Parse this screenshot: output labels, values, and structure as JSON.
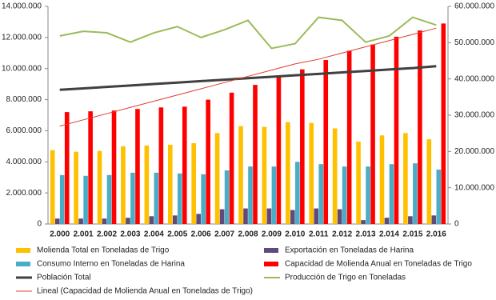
{
  "chart_data": {
    "type": "bar",
    "categories": [
      "2.000",
      "2.001",
      "2.002",
      "2.003",
      "2.004",
      "2.005",
      "2.006",
      "2.007",
      "2.008",
      "2.009",
      "2.010",
      "2.011",
      "2.012",
      "2.013",
      "2.014",
      "2.015",
      "2.016"
    ],
    "ylim": [
      0,
      14000000
    ],
    "yticks": [
      0,
      {
        "value": 2000000,
        "label": "2.000.000"
      },
      {
        "value": 4000000,
        "label": "4.000.000"
      },
      {
        "value": 6000000,
        "label": "6.000.000"
      },
      {
        "value": 8000000,
        "label": "8.000.000"
      },
      {
        "value": 10000000,
        "label": "10.000.000"
      },
      {
        "value": 12000000,
        "label": "12.000.000"
      },
      {
        "value": 14000000,
        "label": "14.000.000"
      }
    ],
    "y2lim": [
      0,
      60000000
    ],
    "y2ticks": [
      0,
      {
        "value": 10000000,
        "label": "10.000.000"
      },
      {
        "value": 20000000,
        "label": "20.000.000"
      },
      {
        "value": 30000000,
        "label": "30.000.000"
      },
      {
        "value": 40000000,
        "label": "40.000.000"
      },
      {
        "value": 50000000,
        "label": "50.000.000"
      },
      {
        "value": 60000000,
        "label": "60.000.000"
      }
    ],
    "series": [
      {
        "name": "Molienda Total en Toneladas de Trigo",
        "kind": "bar",
        "color": "#ffc000",
        "values": [
          4750000,
          4650000,
          4700000,
          5000000,
          5050000,
          5100000,
          5200000,
          5850000,
          6300000,
          6250000,
          6550000,
          6500000,
          6150000,
          5300000,
          5700000,
          5850000,
          5450000
        ]
      },
      {
        "name": "Exportación en Toneladas de Harina",
        "kind": "bar",
        "color": "#604a7b",
        "values": [
          350000,
          350000,
          350000,
          400000,
          500000,
          550000,
          650000,
          950000,
          1000000,
          1000000,
          900000,
          1000000,
          950000,
          250000,
          400000,
          500000,
          550000
        ]
      },
      {
        "name": "Consumo Interno en Toneladas de Harina",
        "kind": "bar",
        "color": "#4bacc6",
        "values": [
          3150000,
          3100000,
          3150000,
          3300000,
          3300000,
          3250000,
          3200000,
          3450000,
          3700000,
          3700000,
          4000000,
          3850000,
          3700000,
          3700000,
          3850000,
          3900000,
          3500000
        ]
      },
      {
        "name": "Capacidad de Molienda Anual en Toneladas de Trigo",
        "kind": "bar",
        "color": "#ff0000",
        "values": [
          7200000,
          7250000,
          7300000,
          7400000,
          7500000,
          7550000,
          8000000,
          8450000,
          8950000,
          9450000,
          9950000,
          10550000,
          11150000,
          11550000,
          12050000,
          12450000,
          12900000
        ]
      },
      {
        "name": "Población Total",
        "kind": "line",
        "axis": "y2",
        "color": "#404040",
        "width": 3,
        "values": [
          37000000,
          37400000,
          37800000,
          38200000,
          38600000,
          39000000,
          39400000,
          39800000,
          40200000,
          40600000,
          41000000,
          41400000,
          41800000,
          42200000,
          42600000,
          43000000,
          43500000
        ]
      },
      {
        "name": "Producción de Trigo en Toneladas",
        "kind": "line",
        "color": "#9bbb59",
        "width": 2,
        "values": [
          12100000,
          12400000,
          12300000,
          11700000,
          12300000,
          12700000,
          12000000,
          12500000,
          13100000,
          11300000,
          11600000,
          13300000,
          13100000,
          11700000,
          12100000,
          13300000,
          12800000
        ]
      },
      {
        "name": "Lineal (Capacidad de Molienda Anual en Toneladas de Trigo)",
        "kind": "line",
        "color": "#e03c31",
        "width": 1,
        "values": [
          6300000,
          6700000,
          7100000,
          7500000,
          7900000,
          8300000,
          8700000,
          9100000,
          9500000,
          9900000,
          10300000,
          10600000,
          11000000,
          11400000,
          11800000,
          12200000,
          12600000
        ]
      }
    ]
  }
}
